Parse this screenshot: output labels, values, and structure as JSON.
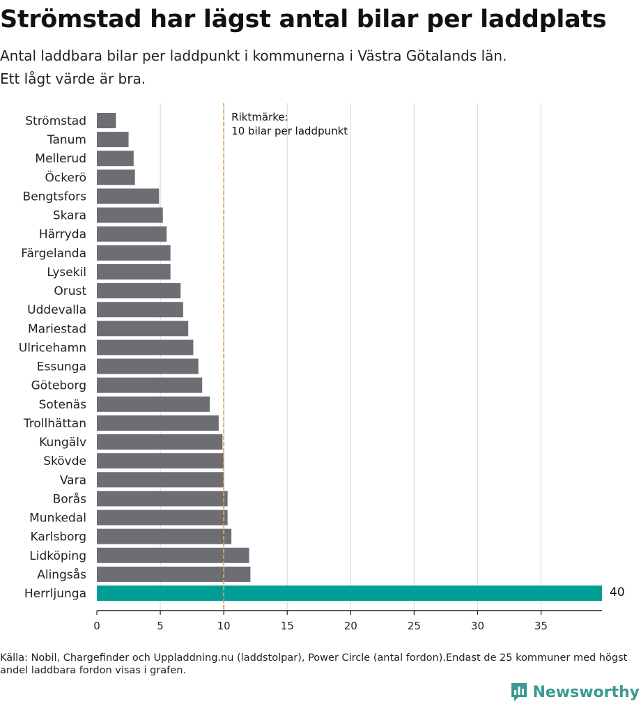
{
  "header": {
    "title": "Strömstad har lägst antal bilar per laddplats",
    "subtitle_line1": "Antal laddbara bilar per laddpunkt i kommunerna i Västra Götalands län.",
    "subtitle_line2": "Ett lågt värde är bra."
  },
  "footer": {
    "source": "Källa: Nobil, Chargefinder och Uppladdning.nu (laddstolpar), Power Circle (antal fordon).Endast de 25 kommuner med högst andel laddbara fordon visas i grafen."
  },
  "logo": {
    "text": "Newsworthy",
    "icon": "bar-chart-speech-icon",
    "color": "#3a9a92"
  },
  "chart_data": {
    "type": "bar",
    "orientation": "horizontal",
    "categories": [
      "Strömstad",
      "Tanum",
      "Mellerud",
      "Öckerö",
      "Bengtsfors",
      "Skara",
      "Härryda",
      "Färgelanda",
      "Lysekil",
      "Orust",
      "Uddevalla",
      "Mariestad",
      "Ulricehamn",
      "Essunga",
      "Göteborg",
      "Sotenäs",
      "Trollhättan",
      "Kungälv",
      "Skövde",
      "Vara",
      "Borås",
      "Munkedal",
      "Karlsborg",
      "Lidköping",
      "Alingsås",
      "Herrljunga"
    ],
    "values": [
      1.5,
      2.5,
      2.9,
      3.0,
      4.9,
      5.2,
      5.5,
      5.8,
      5.8,
      6.6,
      6.8,
      7.2,
      7.6,
      8.0,
      8.3,
      8.9,
      9.6,
      9.9,
      10.0,
      10.0,
      10.3,
      10.3,
      10.6,
      12.0,
      12.1,
      40
    ],
    "xlim": [
      0,
      39.8
    ],
    "xticks": [
      0,
      5,
      10,
      15,
      20,
      25,
      30,
      35
    ],
    "xtick_labels": [
      "0",
      "5",
      "10",
      "15",
      "20",
      "25",
      "30",
      "35"
    ],
    "grid": "vertical",
    "bar_color": "#6f6d74",
    "highlight": {
      "category": "Herrljunga",
      "color": "#009e94",
      "label": "40"
    },
    "reference_line": {
      "value": 10,
      "color": "#d9a75a",
      "label_line1": "Riktmärke:",
      "label_line2": "10 bilar per laddpunkt"
    }
  }
}
